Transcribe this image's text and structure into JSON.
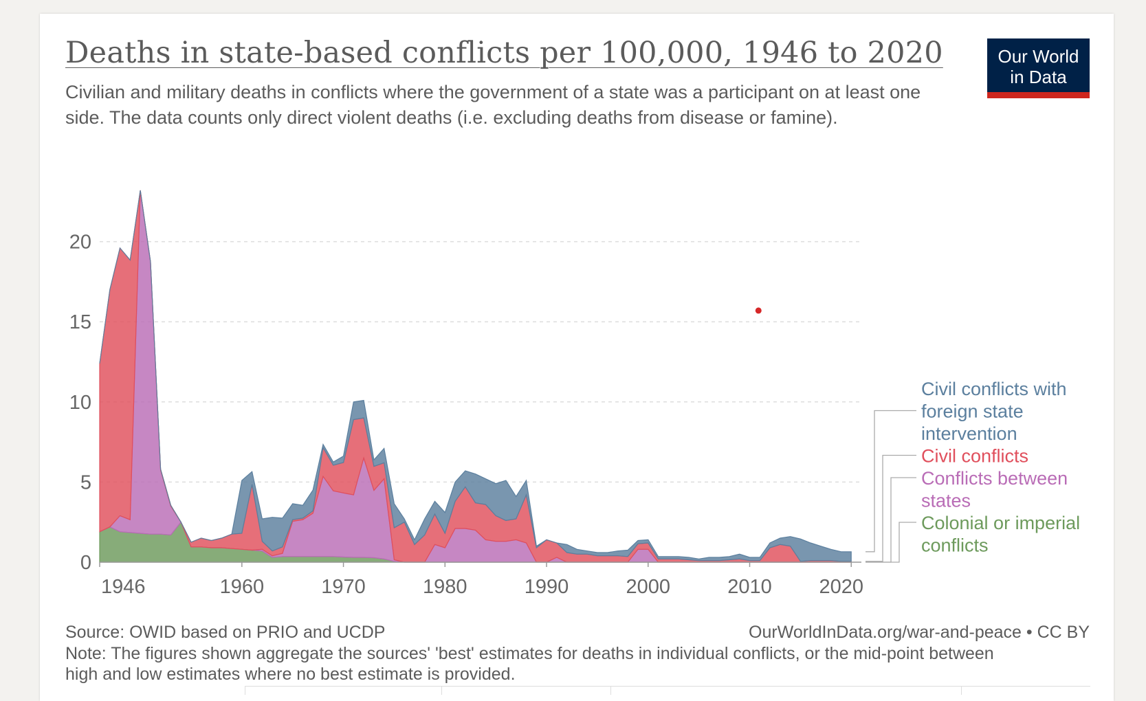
{
  "header": {
    "title": "Deaths in state-based conflicts per 100,000, 1946 to 2020",
    "subtitle": "Civilian and military deaths in conflicts where the government of a state was a participant on at least one side. The data counts only direct violent deaths (i.e. excluding deaths from disease or famine).",
    "logo_line1": "Our World",
    "logo_line2": "in Data"
  },
  "footer": {
    "source": "Source: OWID based on PRIO and UCDP",
    "license": "OurWorldInData.org/war-and-peace • CC BY",
    "note": "Note: The figures shown aggregate the sources' 'best' estimates for deaths in individual conflicts, or the mid-point between high and low estimates where no best estimate is provided."
  },
  "colors": {
    "colonial": "#6d9a5c",
    "interstate": "#b96cb6",
    "civil": "#e04f5c",
    "civil_foreign": "#5b7f9e",
    "grid": "#dddddd",
    "axis": "#999999",
    "logo_bg": "#002147",
    "logo_bar": "#ce261e",
    "marker": "#d62728"
  },
  "chart_data": {
    "type": "area",
    "stacked": true,
    "title": "Deaths in state-based conflicts per 100,000, 1946 to 2020",
    "xlabel": "",
    "ylabel": "",
    "xlim": [
      1946,
      2021
    ],
    "ylim": [
      0,
      23.5
    ],
    "yticks": [
      0,
      5,
      10,
      15,
      20
    ],
    "xticks": [
      1946,
      1960,
      1970,
      1980,
      1990,
      2000,
      2010,
      2020
    ],
    "grid": true,
    "legend_position": "right",
    "x": [
      1946,
      1947,
      1948,
      1949,
      1950,
      1951,
      1952,
      1953,
      1954,
      1955,
      1956,
      1957,
      1958,
      1959,
      1960,
      1961,
      1962,
      1963,
      1964,
      1965,
      1966,
      1967,
      1968,
      1969,
      1970,
      1971,
      1972,
      1973,
      1974,
      1975,
      1976,
      1977,
      1978,
      1979,
      1980,
      1981,
      1982,
      1983,
      1984,
      1985,
      1986,
      1987,
      1988,
      1989,
      1990,
      1991,
      1992,
      1993,
      1994,
      1995,
      1996,
      1997,
      1998,
      1999,
      2000,
      2001,
      2002,
      2003,
      2004,
      2005,
      2006,
      2007,
      2008,
      2009,
      2010,
      2011,
      2012,
      2013,
      2014,
      2015,
      2016,
      2017,
      2018,
      2019,
      2020
    ],
    "series": [
      {
        "name": "Colonial or imperial conflicts",
        "color_key": "colonial",
        "values": [
          1.9,
          2.2,
          1.9,
          1.85,
          1.8,
          1.75,
          1.75,
          1.7,
          2.5,
          0.95,
          0.95,
          0.9,
          0.9,
          0.85,
          0.8,
          0.75,
          0.7,
          0.3,
          0.35,
          0.35,
          0.35,
          0.35,
          0.35,
          0.35,
          0.32,
          0.3,
          0.3,
          0.28,
          0.2,
          0.05,
          0,
          0,
          0,
          0,
          0,
          0,
          0,
          0,
          0,
          0,
          0,
          0,
          0,
          0,
          0,
          0,
          0,
          0,
          0,
          0,
          0,
          0,
          0,
          0,
          0,
          0,
          0,
          0,
          0,
          0,
          0,
          0,
          0,
          0,
          0,
          0,
          0,
          0,
          0,
          0,
          0,
          0,
          0,
          0,
          0
        ]
      },
      {
        "name": "Conflicts between states",
        "color_key": "interstate",
        "values": [
          0,
          0,
          1.0,
          0.8,
          21.4,
          17.0,
          4.0,
          1.8,
          0,
          0,
          0,
          0,
          0,
          0,
          0,
          0,
          0.1,
          0.1,
          0.2,
          2.2,
          2.3,
          2.7,
          5.0,
          4.1,
          4.0,
          3.9,
          6.2,
          4.2,
          5.0,
          0.1,
          0,
          0,
          0,
          1.1,
          0.9,
          2.1,
          2.1,
          2.0,
          1.4,
          1.3,
          1.3,
          1.4,
          1.2,
          0,
          0,
          0.3,
          0,
          0,
          0,
          0,
          0,
          0,
          0,
          0.8,
          0.8,
          0,
          0,
          0,
          0,
          0,
          0,
          0,
          0,
          0,
          0,
          0,
          0,
          0,
          0,
          0,
          0,
          0,
          0,
          0,
          0
        ]
      },
      {
        "name": "Civil conflicts",
        "color_key": "civil",
        "values": [
          10.5,
          14.8,
          16.7,
          16.2,
          0,
          0,
          0.05,
          0.05,
          0,
          0.3,
          0.55,
          0.45,
          0.6,
          0.9,
          1.0,
          4.1,
          0.5,
          0.3,
          0.4,
          0.1,
          0.1,
          0.15,
          1.8,
          1.6,
          1.9,
          4.7,
          2.5,
          1.5,
          1.0,
          2.0,
          2.5,
          1.1,
          1.7,
          1.9,
          0.9,
          1.7,
          2.6,
          1.7,
          2.2,
          1.6,
          1.3,
          1.3,
          3.0,
          0.9,
          1.4,
          0.9,
          0.6,
          0.5,
          0.5,
          0.4,
          0.4,
          0.4,
          0.35,
          0.35,
          0.4,
          0.2,
          0.2,
          0.2,
          0.15,
          0.1,
          0.1,
          0.1,
          0.15,
          0.2,
          0.1,
          0.1,
          0.9,
          1.1,
          1.0,
          0.05,
          0.1,
          0.1,
          0.1,
          0.05,
          0.05
        ]
      },
      {
        "name": "Civil conflicts with foreign state intervention",
        "color_key": "civil_foreign",
        "values": [
          0,
          0,
          0,
          0,
          0,
          0,
          0,
          0,
          0,
          0,
          0,
          0,
          0,
          0,
          3.3,
          0.8,
          1.4,
          2.1,
          1.8,
          1.0,
          0.8,
          1.3,
          0.2,
          0.2,
          0.4,
          1.1,
          1.1,
          0.4,
          0.9,
          1.5,
          0.2,
          0.3,
          1.0,
          0.8,
          1.3,
          1.2,
          1.0,
          1.8,
          1.6,
          2.0,
          2.5,
          1.4,
          0.9,
          0.1,
          0,
          0,
          0.5,
          0.3,
          0.2,
          0.2,
          0.2,
          0.3,
          0.4,
          0.2,
          0.2,
          0.15,
          0.15,
          0.15,
          0.15,
          0.1,
          0.2,
          0.2,
          0.2,
          0.3,
          0.2,
          0.2,
          0.3,
          0.4,
          0.6,
          1.4,
          1.1,
          0.9,
          0.7,
          0.6,
          0.6
        ]
      }
    ]
  },
  "marker_point": {
    "x": 2011,
    "y": 15.7
  }
}
